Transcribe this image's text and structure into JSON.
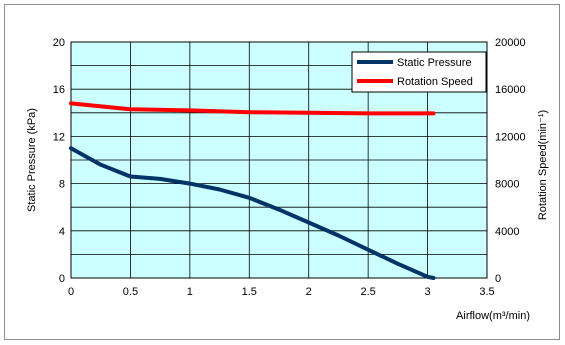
{
  "chart_data": {
    "type": "line",
    "title": "",
    "xlabel": "Airflow(m³/min)",
    "ylabel": "Static Pressure (kPa)",
    "ylabel_right": "Rotation Speed(min⁻¹)",
    "xlim": [
      0,
      3.5
    ],
    "ylim": [
      0,
      20
    ],
    "ylim_right": [
      0,
      20000
    ],
    "x_ticks": [
      "0",
      "0.5",
      "1",
      "1.5",
      "2",
      "2.5",
      "3",
      "3.5"
    ],
    "y_ticks": [
      "0",
      "4",
      "8",
      "12",
      "16",
      "20"
    ],
    "y_ticks_right": [
      "0",
      "4000",
      "8000",
      "12000",
      "16000",
      "20000"
    ],
    "grid": true,
    "plot_background": "#ccffff",
    "legend_position": "top-right",
    "series": [
      {
        "name": "Static Pressure",
        "axis": "left",
        "color": "#003366",
        "x": [
          0,
          0.25,
          0.5,
          0.75,
          1.0,
          1.25,
          1.5,
          1.75,
          2.0,
          2.25,
          2.5,
          2.75,
          3.0,
          3.05
        ],
        "y": [
          11.0,
          9.6,
          8.6,
          8.4,
          8.0,
          7.5,
          6.8,
          5.8,
          4.7,
          3.6,
          2.4,
          1.2,
          0.1,
          0.0
        ]
      },
      {
        "name": "Rotation Speed",
        "axis": "right",
        "color": "#ff0000",
        "x": [
          0,
          0.5,
          1.0,
          1.5,
          2.0,
          2.5,
          3.0,
          3.05
        ],
        "y": [
          14800,
          14300,
          14200,
          14050,
          14000,
          13950,
          13950,
          13950
        ]
      }
    ]
  }
}
